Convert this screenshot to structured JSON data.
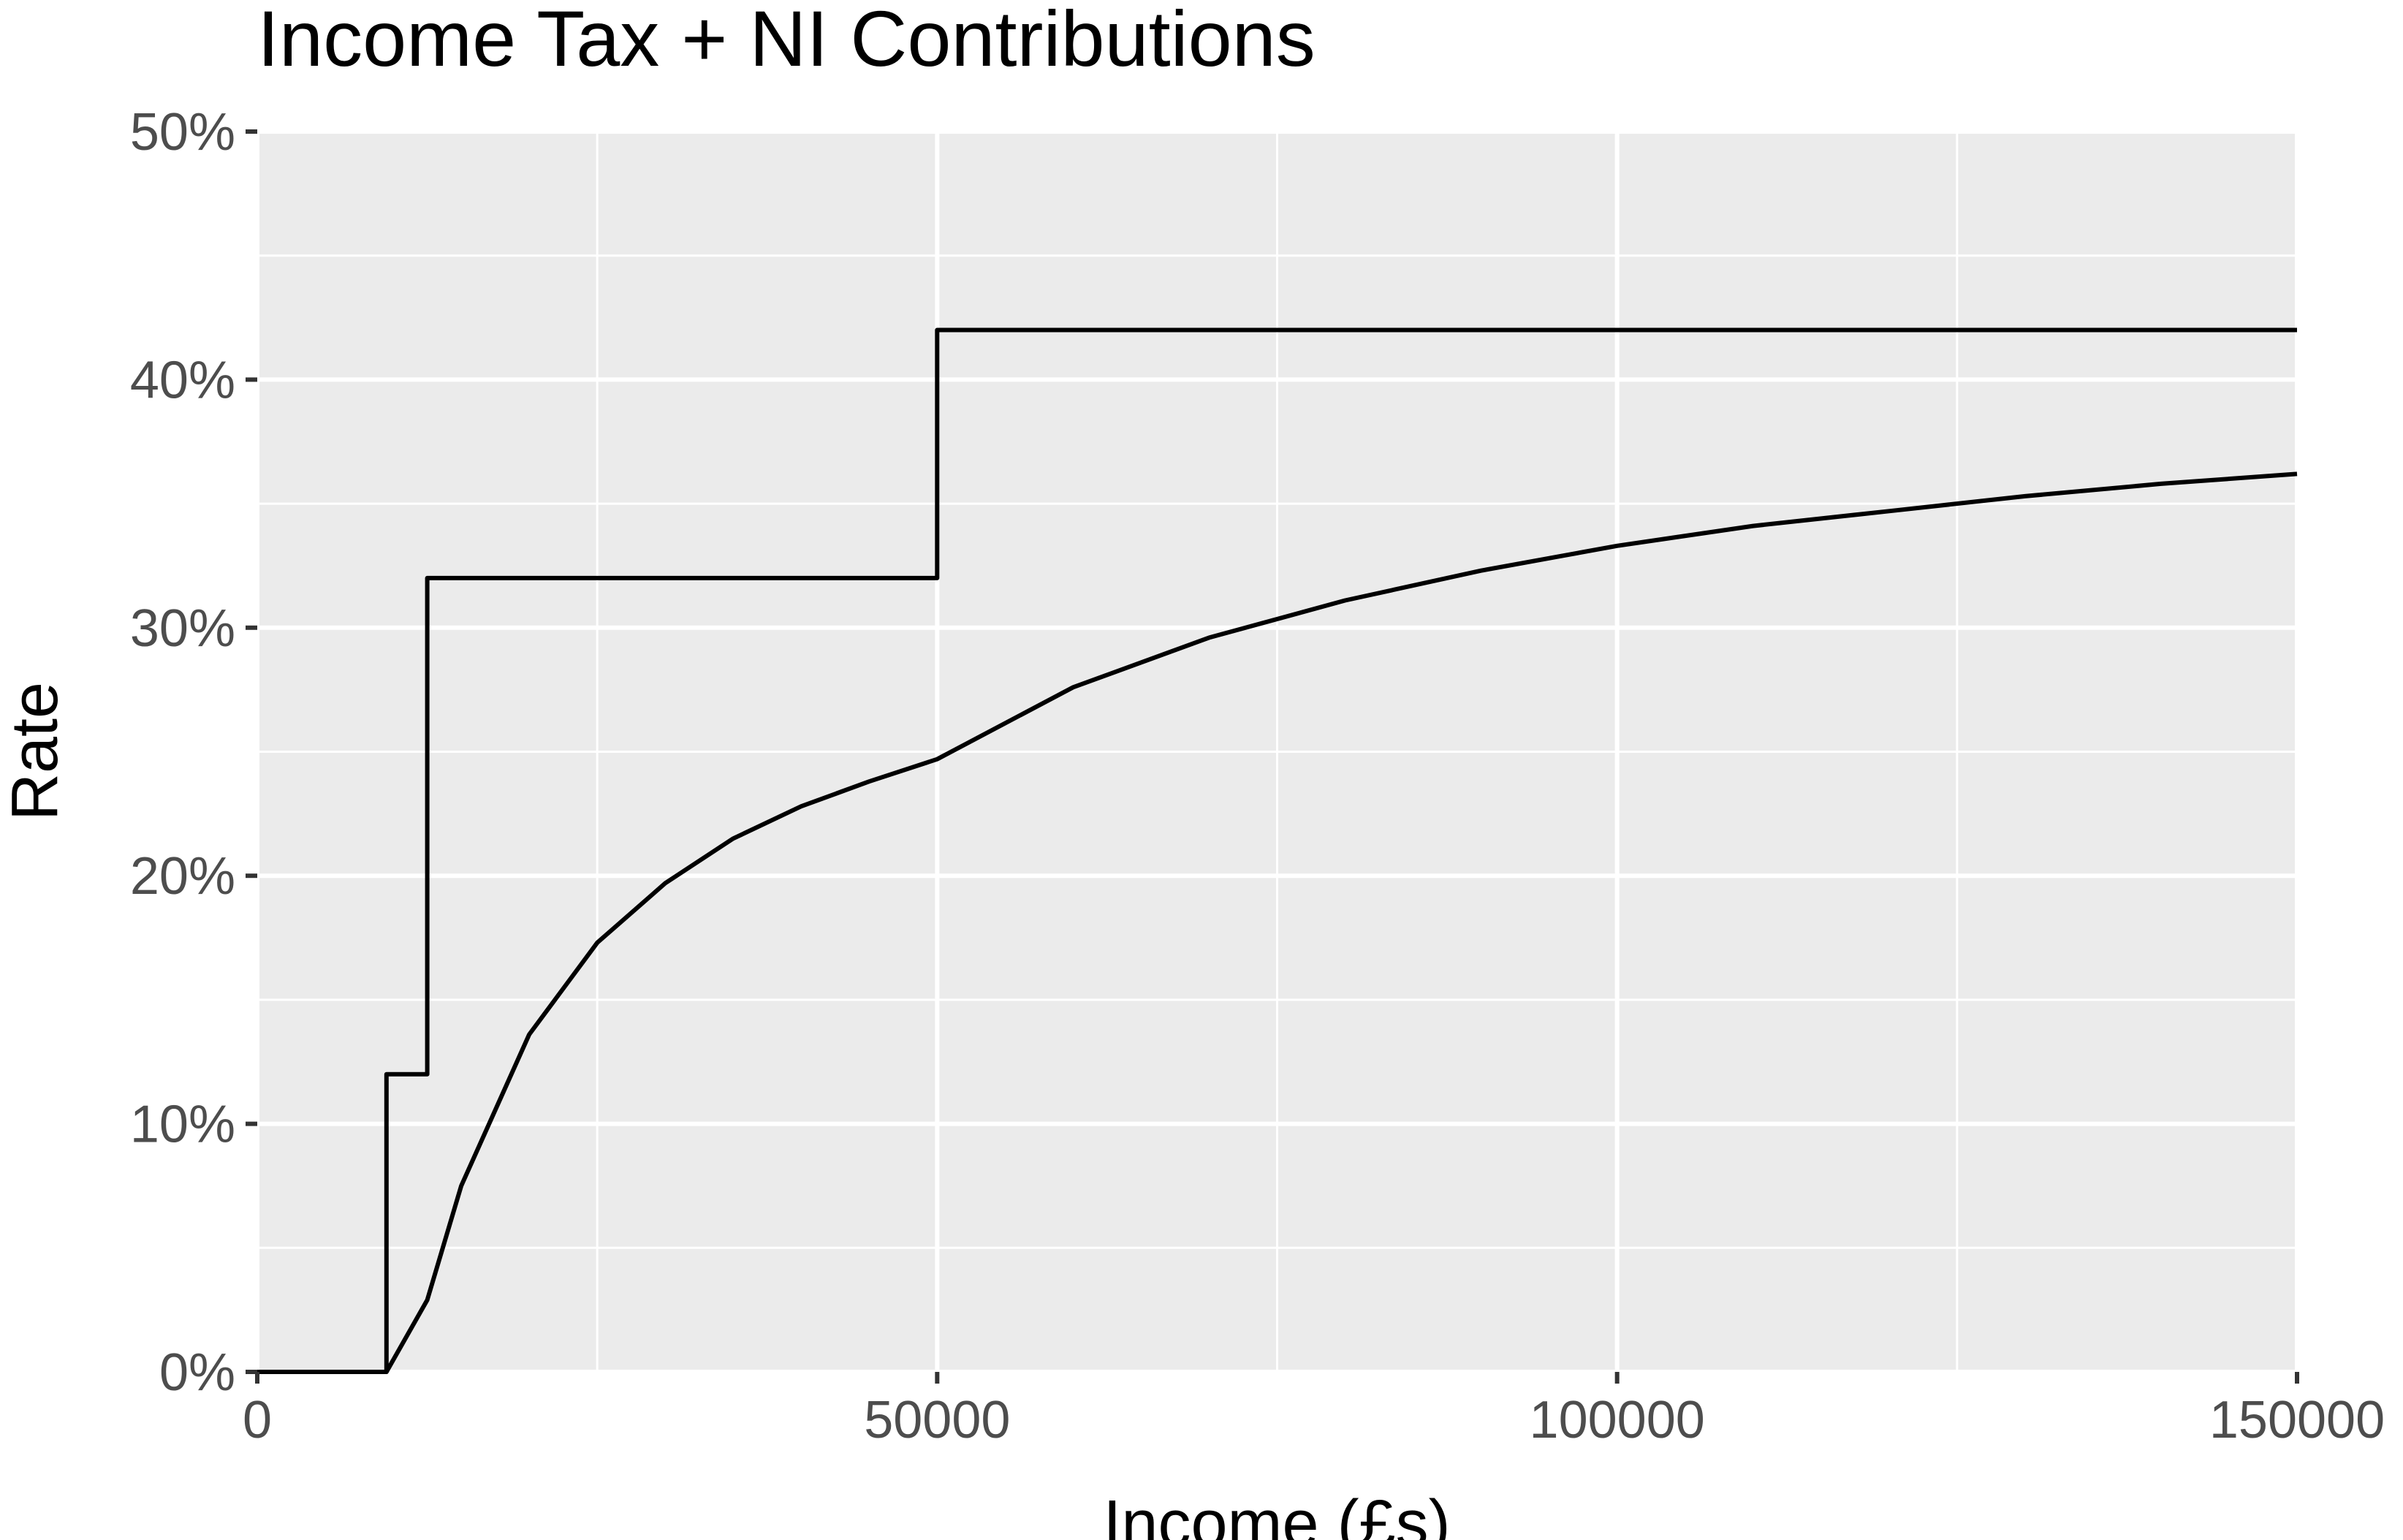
{
  "chart_data": {
    "type": "line",
    "title": "Income Tax + NI Contributions",
    "xlabel": "Income (£s)",
    "ylabel": "Rate",
    "xlim": [
      0,
      150000
    ],
    "ylim": [
      0,
      0.5
    ],
    "x_ticks": [
      {
        "value": 0,
        "label": "0"
      },
      {
        "value": 50000,
        "label": "50000"
      },
      {
        "value": 100000,
        "label": "100000"
      },
      {
        "value": 150000,
        "label": "150000"
      }
    ],
    "x_minor_breaks": [
      25000,
      75000,
      125000
    ],
    "y_ticks": [
      {
        "value": 0,
        "label": "0%"
      },
      {
        "value": 0.1,
        "label": "10%"
      },
      {
        "value": 0.2,
        "label": "20%"
      },
      {
        "value": 0.3,
        "label": "30%"
      },
      {
        "value": 0.4,
        "label": "40%"
      },
      {
        "value": 0.5,
        "label": "50%"
      }
    ],
    "y_minor_breaks": [
      0.05,
      0.15,
      0.25,
      0.35,
      0.45
    ],
    "grid": true,
    "legend": "none",
    "series": [
      {
        "kind": "step",
        "x": [
          0,
          9500,
          9500,
          12500,
          12500,
          50000,
          50000,
          150000
        ],
        "y": [
          0,
          0,
          0.12,
          0.12,
          0.32,
          0.32,
          0.42,
          0.42
        ]
      },
      {
        "kind": "curve",
        "x": [
          0,
          9500,
          12500,
          15000,
          20000,
          25000,
          30000,
          35000,
          40000,
          45000,
          50000,
          60000,
          70000,
          80000,
          90000,
          100000,
          110000,
          120000,
          130000,
          140000,
          150000
        ],
        "y": [
          0,
          0,
          0.029,
          0.075,
          0.136,
          0.173,
          0.197,
          0.215,
          0.228,
          0.238,
          0.247,
          0.276,
          0.296,
          0.311,
          0.323,
          0.333,
          0.341,
          0.347,
          0.353,
          0.358,
          0.362
        ]
      }
    ],
    "colors": {
      "panel": "#ebebeb",
      "grid_major": "#ffffff",
      "grid_minor": "#ffffff",
      "line": "#000000",
      "tick_label": "#4d4d4d",
      "tick_mark": "#333333"
    }
  }
}
